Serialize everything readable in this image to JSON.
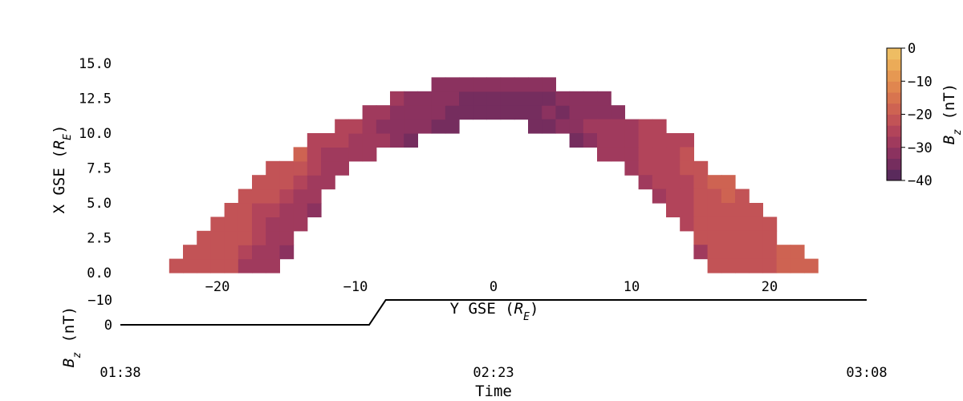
{
  "chart_data": [
    {
      "type": "heatmap",
      "title": "",
      "xlabel": "Y GSE (R_E)",
      "ylabel": "X GSE (R_E)",
      "xlabel_parts": [
        "Y GSE (",
        "R",
        "E",
        ")"
      ],
      "ylabel_parts": [
        "X GSE (",
        "R",
        "E",
        ")"
      ],
      "xlim": [
        -26,
        27
      ],
      "ylim": [
        -0.5,
        16
      ],
      "xticks": [
        -20,
        -10,
        0,
        10,
        20
      ],
      "xtick_labels": [
        "−20",
        "−10",
        "0",
        "10",
        "20"
      ],
      "yticks": [
        0,
        2.5,
        5,
        7.5,
        10,
        12.5,
        15
      ],
      "ytick_labels": [
        "0.0",
        "2.5",
        "5.0",
        "7.5",
        "10.0",
        "12.5",
        "15.0"
      ],
      "grid": false,
      "cell_size": [
        1,
        1
      ],
      "cells_note_value": "value = Bz in nT at cell (y, x)",
      "cells": [
        {
          "x": 0.5,
          "y": -23,
          "v": -22
        },
        {
          "x": 0.5,
          "y": -22,
          "v": -22
        },
        {
          "x": 0.5,
          "y": -21,
          "v": -22
        },
        {
          "x": 0.5,
          "y": -20,
          "v": -23
        },
        {
          "x": 0.5,
          "y": -19,
          "v": -23
        },
        {
          "x": 0.5,
          "y": -18,
          "v": -27
        },
        {
          "x": 0.5,
          "y": -17,
          "v": -27
        },
        {
          "x": 0.5,
          "y": -16,
          "v": -28
        },
        {
          "x": 1.5,
          "y": -22,
          "v": -22
        },
        {
          "x": 1.5,
          "y": -21,
          "v": -22
        },
        {
          "x": 1.5,
          "y": -20,
          "v": -22
        },
        {
          "x": 1.5,
          "y": -19,
          "v": -23
        },
        {
          "x": 1.5,
          "y": -18,
          "v": -24
        },
        {
          "x": 1.5,
          "y": -17,
          "v": -27
        },
        {
          "x": 1.5,
          "y": -16,
          "v": -28
        },
        {
          "x": 1.5,
          "y": -15,
          "v": -32
        },
        {
          "x": 2.5,
          "y": -21,
          "v": -22
        },
        {
          "x": 2.5,
          "y": -20,
          "v": -22
        },
        {
          "x": 2.5,
          "y": -19,
          "v": -22
        },
        {
          "x": 2.5,
          "y": -18,
          "v": -23
        },
        {
          "x": 2.5,
          "y": -17,
          "v": -26
        },
        {
          "x": 2.5,
          "y": -16,
          "v": -27
        },
        {
          "x": 2.5,
          "y": -15,
          "v": -27
        },
        {
          "x": 3.5,
          "y": -20,
          "v": -22
        },
        {
          "x": 3.5,
          "y": -19,
          "v": -22
        },
        {
          "x": 3.5,
          "y": -18,
          "v": -23
        },
        {
          "x": 3.5,
          "y": -17,
          "v": -26
        },
        {
          "x": 3.5,
          "y": -16,
          "v": -27
        },
        {
          "x": 3.5,
          "y": -15,
          "v": -27
        },
        {
          "x": 3.5,
          "y": -14,
          "v": -28
        },
        {
          "x": 4.5,
          "y": -19,
          "v": -21
        },
        {
          "x": 4.5,
          "y": -18,
          "v": -22
        },
        {
          "x": 4.5,
          "y": -17,
          "v": -24
        },
        {
          "x": 4.5,
          "y": -16,
          "v": -26
        },
        {
          "x": 4.5,
          "y": -15,
          "v": -27
        },
        {
          "x": 4.5,
          "y": -14,
          "v": -27
        },
        {
          "x": 4.5,
          "y": -13,
          "v": -32
        },
        {
          "x": 5.5,
          "y": -18,
          "v": -21
        },
        {
          "x": 5.5,
          "y": -17,
          "v": -22
        },
        {
          "x": 5.5,
          "y": -16,
          "v": -23
        },
        {
          "x": 5.5,
          "y": -15,
          "v": -26
        },
        {
          "x": 5.5,
          "y": -14,
          "v": -27
        },
        {
          "x": 5.5,
          "y": -13,
          "v": -28
        },
        {
          "x": 6.5,
          "y": -17,
          "v": -21
        },
        {
          "x": 6.5,
          "y": -16,
          "v": -22
        },
        {
          "x": 6.5,
          "y": -15,
          "v": -23
        },
        {
          "x": 6.5,
          "y": -14,
          "v": -26
        },
        {
          "x": 6.5,
          "y": -13,
          "v": -27
        },
        {
          "x": 6.5,
          "y": -12,
          "v": -30
        },
        {
          "x": 7.5,
          "y": -16,
          "v": -21
        },
        {
          "x": 7.5,
          "y": -15,
          "v": -21
        },
        {
          "x": 7.5,
          "y": -14,
          "v": -22
        },
        {
          "x": 7.5,
          "y": -13,
          "v": -26
        },
        {
          "x": 7.5,
          "y": -12,
          "v": -27
        },
        {
          "x": 7.5,
          "y": -11,
          "v": -30
        },
        {
          "x": 8.5,
          "y": -14,
          "v": -20
        },
        {
          "x": 8.5,
          "y": -13,
          "v": -24
        },
        {
          "x": 8.5,
          "y": -12,
          "v": -27
        },
        {
          "x": 8.5,
          "y": -11,
          "v": -28
        },
        {
          "x": 8.5,
          "y": -10,
          "v": -30
        },
        {
          "x": 8.5,
          "y": -9,
          "v": -30
        },
        {
          "x": 9.5,
          "y": -13,
          "v": -24
        },
        {
          "x": 9.5,
          "y": -12,
          "v": -26
        },
        {
          "x": 9.5,
          "y": -11,
          "v": -26
        },
        {
          "x": 9.5,
          "y": -10,
          "v": -29
        },
        {
          "x": 9.5,
          "y": -9,
          "v": -30
        },
        {
          "x": 9.5,
          "y": -8,
          "v": -30
        },
        {
          "x": 9.5,
          "y": -7,
          "v": -31
        },
        {
          "x": 9.5,
          "y": -6,
          "v": -34
        },
        {
          "x": 10.5,
          "y": -11,
          "v": -26
        },
        {
          "x": 10.5,
          "y": -10,
          "v": -26
        },
        {
          "x": 10.5,
          "y": -9,
          "v": -30
        },
        {
          "x": 10.5,
          "y": -8,
          "v": -31
        },
        {
          "x": 10.5,
          "y": -7,
          "v": -31
        },
        {
          "x": 10.5,
          "y": -6,
          "v": -33
        },
        {
          "x": 10.5,
          "y": -5,
          "v": -33
        },
        {
          "x": 10.5,
          "y": -4,
          "v": -34
        },
        {
          "x": 10.5,
          "y": -3,
          "v": -35
        },
        {
          "x": 11.5,
          "y": -9,
          "v": -28
        },
        {
          "x": 11.5,
          "y": -8,
          "v": -30
        },
        {
          "x": 11.5,
          "y": -7,
          "v": -31
        },
        {
          "x": 11.5,
          "y": -6,
          "v": -31
        },
        {
          "x": 11.5,
          "y": -5,
          "v": -32
        },
        {
          "x": 11.5,
          "y": -4,
          "v": -33
        },
        {
          "x": 11.5,
          "y": -3,
          "v": -34
        },
        {
          "x": 11.5,
          "y": -2,
          "v": -34
        },
        {
          "x": 11.5,
          "y": -1,
          "v": -34
        },
        {
          "x": 11.5,
          "y": 0,
          "v": -34
        },
        {
          "x": 11.5,
          "y": 1,
          "v": -35
        },
        {
          "x": 11.5,
          "y": 2,
          "v": -35
        },
        {
          "x": 11.5,
          "y": 3,
          "v": -34
        },
        {
          "x": 11.5,
          "y": 4,
          "v": -33
        },
        {
          "x": 11.5,
          "y": 5,
          "v": -34
        },
        {
          "x": 11.5,
          "y": 6,
          "v": -33
        },
        {
          "x": 11.5,
          "y": 7,
          "v": -32
        },
        {
          "x": 11.5,
          "y": 8,
          "v": -31
        },
        {
          "x": 11.5,
          "y": 9,
          "v": -31
        },
        {
          "x": 12.5,
          "y": -7,
          "v": -30
        },
        {
          "x": 12.5,
          "y": -6,
          "v": -31
        },
        {
          "x": 12.5,
          "y": -5,
          "v": -31
        },
        {
          "x": 12.5,
          "y": -4,
          "v": -32
        },
        {
          "x": 12.5,
          "y": -3,
          "v": -33
        },
        {
          "x": 12.5,
          "y": -2,
          "v": -34
        },
        {
          "x": 12.5,
          "y": -1,
          "v": -35
        },
        {
          "x": 12.5,
          "y": 0,
          "v": -35
        },
        {
          "x": 12.5,
          "y": 1,
          "v": -36
        },
        {
          "x": 12.5,
          "y": 2,
          "v": -35
        },
        {
          "x": 12.5,
          "y": 3,
          "v": -35
        },
        {
          "x": 12.5,
          "y": 4,
          "v": -34
        },
        {
          "x": 12.5,
          "y": 5,
          "v": -33
        },
        {
          "x": 12.5,
          "y": 6,
          "v": -32
        },
        {
          "x": 12.5,
          "y": 7,
          "v": -31
        },
        {
          "x": 12.5,
          "y": 8,
          "v": -31
        },
        {
          "x": 13.5,
          "y": -4,
          "v": -32
        },
        {
          "x": 13.5,
          "y": -3,
          "v": -32
        },
        {
          "x": 13.5,
          "y": -2,
          "v": -33
        },
        {
          "x": 13.5,
          "y": -1,
          "v": -33
        },
        {
          "x": 13.5,
          "y": 0,
          "v": -33
        },
        {
          "x": 13.5,
          "y": 1,
          "v": -33
        },
        {
          "x": 13.5,
          "y": 2,
          "v": -33
        },
        {
          "x": 13.5,
          "y": 3,
          "v": -32
        },
        {
          "x": 13.5,
          "y": 4,
          "v": -32
        },
        {
          "x": 10.5,
          "y": 3,
          "v": -35
        },
        {
          "x": 10.5,
          "y": 4,
          "v": -34
        },
        {
          "x": 10.5,
          "y": 5,
          "v": -33
        },
        {
          "x": 10.5,
          "y": 6,
          "v": -31
        },
        {
          "x": 10.5,
          "y": 7,
          "v": -30
        },
        {
          "x": 10.5,
          "y": 8,
          "v": -30
        },
        {
          "x": 10.5,
          "y": 9,
          "v": -29
        },
        {
          "x": 10.5,
          "y": 10,
          "v": -28
        },
        {
          "x": 10.5,
          "y": 11,
          "v": -25
        },
        {
          "x": 10.5,
          "y": 12,
          "v": -25
        },
        {
          "x": 9.5,
          "y": 6,
          "v": -34
        },
        {
          "x": 9.5,
          "y": 7,
          "v": -31
        },
        {
          "x": 9.5,
          "y": 8,
          "v": -30
        },
        {
          "x": 9.5,
          "y": 9,
          "v": -30
        },
        {
          "x": 9.5,
          "y": 10,
          "v": -29
        },
        {
          "x": 9.5,
          "y": 11,
          "v": -26
        },
        {
          "x": 9.5,
          "y": 12,
          "v": -26
        },
        {
          "x": 9.5,
          "y": 13,
          "v": -24
        },
        {
          "x": 9.5,
          "y": 14,
          "v": -24
        },
        {
          "x": 8.5,
          "y": 8,
          "v": -30
        },
        {
          "x": 8.5,
          "y": 9,
          "v": -30
        },
        {
          "x": 8.5,
          "y": 10,
          "v": -28
        },
        {
          "x": 8.5,
          "y": 11,
          "v": -26
        },
        {
          "x": 8.5,
          "y": 12,
          "v": -25
        },
        {
          "x": 8.5,
          "y": 13,
          "v": -24
        },
        {
          "x": 8.5,
          "y": 14,
          "v": -23
        },
        {
          "x": 7.5,
          "y": 10,
          "v": -29
        },
        {
          "x": 7.5,
          "y": 11,
          "v": -26
        },
        {
          "x": 7.5,
          "y": 12,
          "v": -25
        },
        {
          "x": 7.5,
          "y": 13,
          "v": -24
        },
        {
          "x": 7.5,
          "y": 14,
          "v": -23
        },
        {
          "x": 7.5,
          "y": 15,
          "v": -22
        },
        {
          "x": 6.5,
          "y": 11,
          "v": -30
        },
        {
          "x": 6.5,
          "y": 12,
          "v": -26
        },
        {
          "x": 6.5,
          "y": 13,
          "v": -25
        },
        {
          "x": 6.5,
          "y": 14,
          "v": -24
        },
        {
          "x": 6.5,
          "y": 15,
          "v": -22
        },
        {
          "x": 6.5,
          "y": 16,
          "v": -20
        },
        {
          "x": 6.5,
          "y": 17,
          "v": -20
        },
        {
          "x": 5.5,
          "y": 12,
          "v": -27
        },
        {
          "x": 5.5,
          "y": 13,
          "v": -26
        },
        {
          "x": 5.5,
          "y": 14,
          "v": -24
        },
        {
          "x": 5.5,
          "y": 15,
          "v": -22
        },
        {
          "x": 5.5,
          "y": 16,
          "v": -21
        },
        {
          "x": 5.5,
          "y": 17,
          "v": -20
        },
        {
          "x": 5.5,
          "y": 18,
          "v": -21
        },
        {
          "x": 4.5,
          "y": 13,
          "v": -26
        },
        {
          "x": 4.5,
          "y": 14,
          "v": -25
        },
        {
          "x": 4.5,
          "y": 15,
          "v": -22
        },
        {
          "x": 4.5,
          "y": 16,
          "v": -21
        },
        {
          "x": 4.5,
          "y": 17,
          "v": -21
        },
        {
          "x": 4.5,
          "y": 18,
          "v": -21
        },
        {
          "x": 4.5,
          "y": 19,
          "v": -21
        },
        {
          "x": 3.5,
          "y": 14,
          "v": -26
        },
        {
          "x": 3.5,
          "y": 15,
          "v": -22
        },
        {
          "x": 3.5,
          "y": 16,
          "v": -21
        },
        {
          "x": 3.5,
          "y": 17,
          "v": -21
        },
        {
          "x": 3.5,
          "y": 18,
          "v": -21
        },
        {
          "x": 3.5,
          "y": 19,
          "v": -21
        },
        {
          "x": 3.5,
          "y": 20,
          "v": -21
        },
        {
          "x": 2.5,
          "y": 15,
          "v": -22
        },
        {
          "x": 2.5,
          "y": 16,
          "v": -22
        },
        {
          "x": 2.5,
          "y": 17,
          "v": -22
        },
        {
          "x": 2.5,
          "y": 18,
          "v": -22
        },
        {
          "x": 2.5,
          "y": 19,
          "v": -22
        },
        {
          "x": 2.5,
          "y": 20,
          "v": -21
        },
        {
          "x": 1.5,
          "y": 15,
          "v": -27
        },
        {
          "x": 1.5,
          "y": 16,
          "v": -22
        },
        {
          "x": 1.5,
          "y": 17,
          "v": -22
        },
        {
          "x": 1.5,
          "y": 18,
          "v": -22
        },
        {
          "x": 1.5,
          "y": 19,
          "v": -22
        },
        {
          "x": 1.5,
          "y": 20,
          "v": -22
        },
        {
          "x": 1.5,
          "y": 21,
          "v": -20
        },
        {
          "x": 1.5,
          "y": 22,
          "v": -20
        },
        {
          "x": 0.5,
          "y": 16,
          "v": -22
        },
        {
          "x": 0.5,
          "y": 17,
          "v": -22
        },
        {
          "x": 0.5,
          "y": 18,
          "v": -22
        },
        {
          "x": 0.5,
          "y": 19,
          "v": -22
        },
        {
          "x": 0.5,
          "y": 20,
          "v": -22
        },
        {
          "x": 0.5,
          "y": 21,
          "v": -20
        },
        {
          "x": 0.5,
          "y": 22,
          "v": -20
        },
        {
          "x": 0.5,
          "y": 23,
          "v": -20
        }
      ],
      "colorbar": {
        "label_parts": [
          "B",
          "z",
          " (nT)"
        ],
        "label": "B_z (nT)",
        "vmin": -40,
        "vmax": 0,
        "ticks": [
          0,
          -10,
          -20,
          -30,
          -40
        ],
        "tick_labels": [
          "0",
          "−10",
          "−20",
          "−30",
          "−40"
        ],
        "colors": [
          "#5a2a5c",
          "#752d5e",
          "#8b325f",
          "#a03a5d",
          "#b2445a",
          "#c25356",
          "#ce6352",
          "#d8744f",
          "#e0864f",
          "#e69852",
          "#ebab58",
          "#eebd63"
        ]
      }
    },
    {
      "type": "line",
      "title": "",
      "xlabel": "Time",
      "ylabel": "B_z (nT)",
      "ylabel_parts": [
        "B",
        "z",
        " (nT)"
      ],
      "x": [
        0,
        30,
        32,
        90
      ],
      "values": [
        0,
        0,
        -10,
        -10
      ],
      "xlim": [
        0,
        90
      ],
      "ylim": [
        -12,
        2
      ],
      "xticks": [
        0,
        45,
        90
      ],
      "xtick_labels": [
        "01:38",
        "02:23",
        "03:08"
      ],
      "yticks": [
        0,
        -10
      ],
      "ytick_labels": [
        "0",
        "−10"
      ],
      "line_color": "#000000",
      "grid": false
    }
  ]
}
